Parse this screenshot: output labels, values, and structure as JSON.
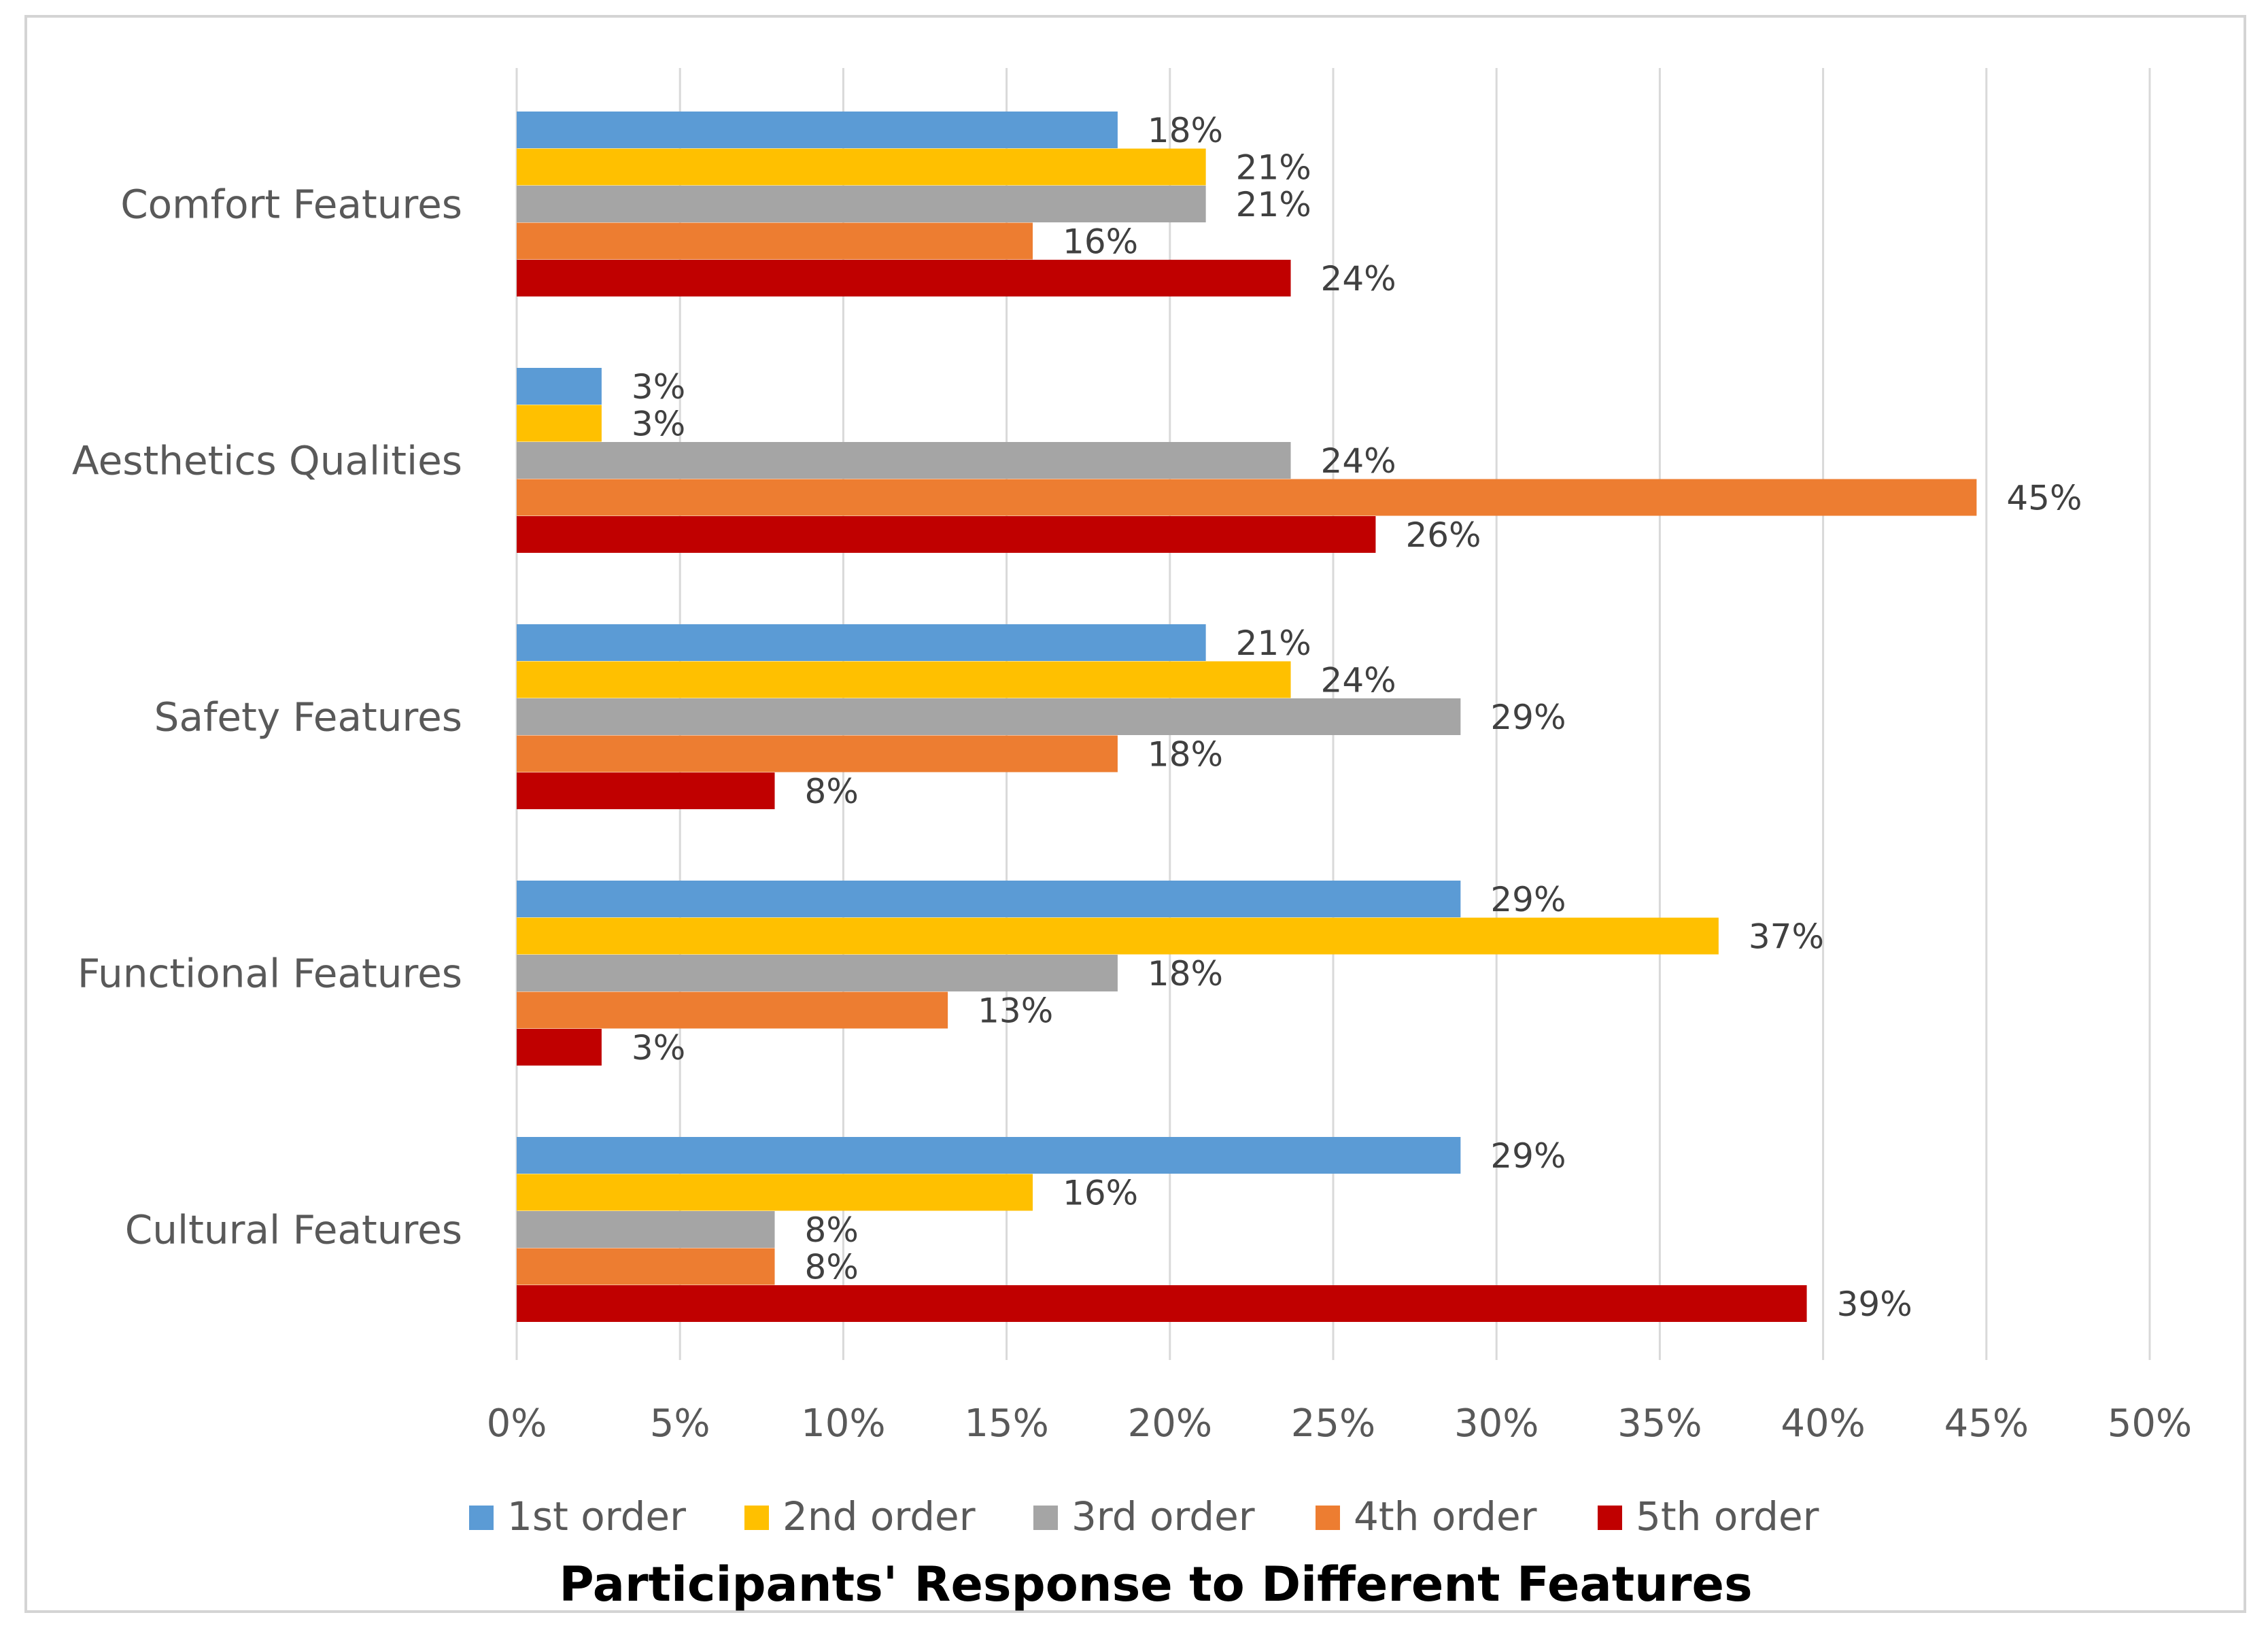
{
  "chart_data": {
    "type": "bar",
    "orientation": "horizontal",
    "title": "Participants' Response to Different Features",
    "xlabel": "",
    "ylabel": "",
    "xlim": [
      0,
      50
    ],
    "x_ticks": [
      0,
      5,
      10,
      15,
      20,
      25,
      30,
      35,
      40,
      45,
      50
    ],
    "x_tick_labels": [
      "0%",
      "5%",
      "10%",
      "15%",
      "20%",
      "25%",
      "30%",
      "35%",
      "40%",
      "45%",
      "50%"
    ],
    "grid": true,
    "legend_position": "bottom",
    "categories": [
      "Comfort Features",
      "Aesthetics Qualities",
      "Safety Features",
      "Functional Features",
      "Cultural Features"
    ],
    "series": [
      {
        "name": "1st order",
        "color": "#5b9bd5",
        "values": [
          18.4,
          2.6,
          21.1,
          28.9,
          28.9
        ],
        "labels": [
          "18%",
          "3%",
          "21%",
          "29%",
          "29%"
        ]
      },
      {
        "name": "2nd order",
        "color": "#ffc000",
        "values": [
          21.1,
          2.6,
          23.7,
          36.8,
          15.8
        ],
        "labels": [
          "21%",
          "3%",
          "24%",
          "37%",
          "16%"
        ]
      },
      {
        "name": "3rd order",
        "color": "#a5a5a5",
        "values": [
          21.1,
          23.7,
          28.9,
          18.4,
          7.9
        ],
        "labels": [
          "21%",
          "24%",
          "29%",
          "18%",
          "8%"
        ]
      },
      {
        "name": "4th order",
        "color": "#ed7d31",
        "values": [
          15.8,
          44.7,
          18.4,
          13.2,
          7.9
        ],
        "labels": [
          "16%",
          "45%",
          "18%",
          "13%",
          "8%"
        ]
      },
      {
        "name": "5th order",
        "color": "#c00000",
        "values": [
          23.7,
          26.3,
          7.9,
          2.6,
          39.5
        ],
        "labels": [
          "24%",
          "26%",
          "8%",
          "3%",
          "39%"
        ]
      }
    ]
  }
}
